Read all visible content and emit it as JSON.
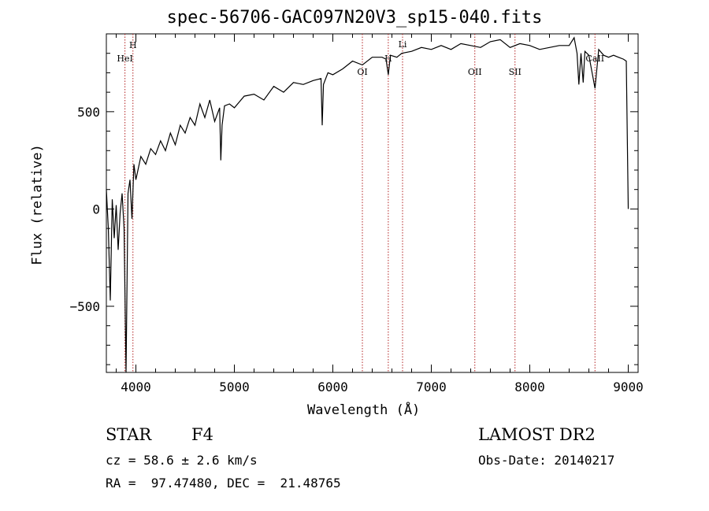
{
  "chart_data": {
    "type": "line",
    "title": "spec-56706-GAC097N20V3_sp15-040.fits",
    "xlabel": "Wavelength (Å)",
    "ylabel": "Flux (relative)",
    "xlim": [
      3700,
      9100
    ],
    "ylim": [
      -840,
      900
    ],
    "x_ticks": [
      4000,
      5000,
      6000,
      7000,
      8000,
      9000
    ],
    "x_tick_labels": [
      "4000",
      "5000",
      "6000",
      "7000",
      "8000",
      "9000"
    ],
    "y_ticks": [
      -500,
      0,
      500
    ],
    "y_tick_labels": [
      "−500",
      "0",
      "500"
    ],
    "grid": false,
    "line_color": "#000000",
    "marker_color": "#b22222",
    "series": [
      {
        "x": [
          3700,
          3720,
          3740,
          3760,
          3780,
          3800,
          3820,
          3840,
          3860,
          3880,
          3900,
          3920,
          3940,
          3960,
          3980,
          4000,
          4050,
          4100,
          4150,
          4200,
          4250,
          4300,
          4350,
          4400,
          4450,
          4500,
          4550,
          4600,
          4650,
          4700,
          4750,
          4800,
          4850,
          4862,
          4875,
          4900,
          4950,
          5000,
          5100,
          5200,
          5300,
          5400,
          5500,
          5600,
          5700,
          5800,
          5880,
          5892,
          5905,
          5950,
          6000,
          6100,
          6200,
          6300,
          6400,
          6500,
          6540,
          6563,
          6585,
          6650,
          6700,
          6800,
          6900,
          7000,
          7100,
          7200,
          7300,
          7400,
          7500,
          7600,
          7700,
          7800,
          7900,
          8000,
          8100,
          8200,
          8300,
          8400,
          8450,
          8480,
          8498,
          8520,
          8542,
          8560,
          8600,
          8662,
          8700,
          8750,
          8800,
          8850,
          8900,
          8950,
          8980,
          9000
        ],
        "y": [
          100,
          -100,
          -470,
          50,
          -150,
          20,
          -210,
          -20,
          80,
          -100,
          -840,
          80,
          150,
          -50,
          230,
          150,
          270,
          230,
          310,
          280,
          350,
          300,
          390,
          330,
          430,
          390,
          470,
          430,
          540,
          470,
          560,
          450,
          520,
          250,
          430,
          530,
          540,
          520,
          580,
          590,
          560,
          630,
          600,
          650,
          640,
          660,
          670,
          430,
          640,
          700,
          690,
          720,
          760,
          740,
          780,
          780,
          770,
          690,
          790,
          780,
          800,
          810,
          830,
          820,
          840,
          820,
          850,
          840,
          830,
          860,
          870,
          830,
          850,
          840,
          820,
          830,
          840,
          840,
          880,
          800,
          640,
          800,
          650,
          810,
          790,
          620,
          820,
          790,
          780,
          790,
          780,
          770,
          760,
          0
        ]
      }
    ],
    "line_markers": [
      {
        "x": 3889,
        "label": "HeI"
      },
      {
        "x": 3970,
        "label": "H"
      },
      {
        "x": 6300,
        "label": "OI"
      },
      {
        "x": 6563,
        "label": "H"
      },
      {
        "x": 6708,
        "label": "Li"
      },
      {
        "x": 7442,
        "label": "OII"
      },
      {
        "x": 7850,
        "label": "SII"
      },
      {
        "x": 8662,
        "label": "CaII"
      }
    ]
  },
  "info": {
    "object_type": "STAR",
    "subclass": "F4",
    "survey": "LAMOST DR2",
    "redshift": "cz = 58.6 ± 2.6 km/s",
    "obs_date": "Obs-Date: 20140217",
    "coordinates": "RA =  97.47480, DEC =  21.48765"
  }
}
